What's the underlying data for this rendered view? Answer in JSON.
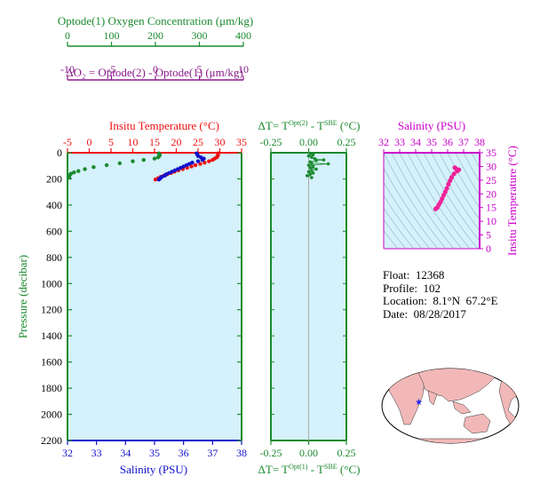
{
  "colors": {
    "oxygen": "#1a8a2e",
    "delta_o2": "#8a1a8a",
    "temperature": "#ee1111",
    "salinity": "#1111cc",
    "salinity_ts": "#cc00cc",
    "points_ts": "#ee2299",
    "panel_fill": "#d5f1fb",
    "pressure_axis": "#1a8a2e",
    "dt_axis": "#1a8a2e",
    "map_land": "#f2b8b8",
    "map_ocean": "#ffffff",
    "float_marker": "#2222ee"
  },
  "info": {
    "float": "Float:  12368",
    "profile": "Profile:  102",
    "location": "Location:  8.1°N  67.2°E",
    "date": "Date:  08/28/2017"
  },
  "chart_data": [
    {
      "type": "scatter",
      "panel": "profile",
      "axes": {
        "oxygen": {
          "label": "Optode(1) Oxygen Concentration (μm/kg)",
          "range": [
            0,
            400
          ],
          "ticks": [
            0,
            100,
            200,
            300,
            400
          ]
        },
        "delta_o2": {
          "label": "ΔO₂ = Optode(2) - Optode(1)   (μm/kg)",
          "range": [
            -10,
            10
          ],
          "ticks": [
            -10,
            -5,
            0,
            5,
            10
          ]
        },
        "temperature": {
          "label": "Insitu Temperature (°C)",
          "range": [
            -5,
            35
          ],
          "ticks": [
            -5,
            0,
            5,
            10,
            15,
            20,
            25,
            30,
            35
          ]
        },
        "salinity": {
          "label": "Salinity (PSU)",
          "range": [
            32,
            38
          ],
          "ticks": [
            32,
            33,
            34,
            35,
            36,
            37,
            38
          ]
        },
        "pressure": {
          "label": "Pressure (decibar)",
          "range": [
            0,
            2200
          ],
          "ticks": [
            0,
            200,
            400,
            600,
            800,
            1000,
            1200,
            1400,
            1600,
            1800,
            2000,
            2200
          ]
        }
      },
      "series": [
        {
          "key": "oxygen",
          "points": [
            [
              210,
              5
            ],
            [
              212,
              15
            ],
            [
              211,
              25
            ],
            [
              208,
              35
            ],
            [
              200,
              45
            ],
            [
              175,
              55
            ],
            [
              150,
              65
            ],
            [
              120,
              80
            ],
            [
              90,
              95
            ],
            [
              60,
              110
            ],
            [
              40,
              125
            ],
            [
              25,
              140
            ],
            [
              15,
              150
            ],
            [
              8,
              160
            ],
            [
              5,
              170
            ],
            [
              4,
              180
            ],
            [
              4,
              190
            ]
          ]
        },
        {
          "key": "temperature",
          "points": [
            [
              29.6,
              5
            ],
            [
              29.6,
              15
            ],
            [
              29.5,
              25
            ],
            [
              29.3,
              35
            ],
            [
              28.8,
              45
            ],
            [
              28.3,
              55
            ],
            [
              27.5,
              65
            ],
            [
              26.5,
              75
            ],
            [
              25.5,
              85
            ],
            [
              24.4,
              95
            ],
            [
              23.5,
              105
            ],
            [
              22.5,
              115
            ],
            [
              21.5,
              125
            ],
            [
              20.5,
              135
            ],
            [
              19.6,
              145
            ],
            [
              18.8,
              155
            ],
            [
              17.9,
              165
            ],
            [
              17.1,
              175
            ],
            [
              16.4,
              185
            ],
            [
              15.8,
              195
            ],
            [
              15.2,
              205
            ]
          ]
        },
        {
          "key": "salinity",
          "points": [
            [
              36.45,
              5
            ],
            [
              36.48,
              15
            ],
            [
              36.5,
              25
            ],
            [
              36.6,
              35
            ],
            [
              36.7,
              45
            ],
            [
              36.65,
              55
            ],
            [
              36.5,
              65
            ],
            [
              36.3,
              75
            ],
            [
              36.2,
              85
            ],
            [
              36.1,
              95
            ],
            [
              36.0,
              105
            ],
            [
              35.9,
              115
            ],
            [
              35.8,
              125
            ],
            [
              35.7,
              135
            ],
            [
              35.6,
              145
            ],
            [
              35.5,
              155
            ],
            [
              35.4,
              165
            ],
            [
              35.35,
              175
            ],
            [
              35.25,
              185
            ],
            [
              35.2,
              195
            ],
            [
              35.15,
              205
            ]
          ]
        }
      ]
    },
    {
      "type": "scatter",
      "panel": "delta_t",
      "axes": {
        "top": {
          "label": "ΔT= T^Opt(2) - T^SBE (°C)",
          "range": [
            -0.25,
            0.25
          ],
          "ticks": [
            "-0.25",
            "0.00",
            "0.25"
          ]
        },
        "bottom": {
          "label": "ΔT= T^Opt(1) - T^SBE (°C)",
          "range": [
            -0.25,
            0.25
          ],
          "ticks": [
            "-0.25",
            "0.00",
            "0.25"
          ]
        }
      },
      "points": [
        [
          0.01,
          5
        ],
        [
          0.03,
          15
        ],
        [
          0.0,
          25
        ],
        [
          0.02,
          35
        ],
        [
          0.04,
          45
        ],
        [
          0.1,
          55
        ],
        [
          0.05,
          60
        ],
        [
          0.01,
          70
        ],
        [
          0.02,
          80
        ],
        [
          0.13,
          85
        ],
        [
          0.0,
          95
        ],
        [
          0.03,
          105
        ],
        [
          0.01,
          115
        ],
        [
          0.05,
          125
        ],
        [
          0.02,
          135
        ],
        [
          0.0,
          145
        ],
        [
          0.03,
          155
        ],
        [
          0.01,
          165
        ],
        [
          -0.01,
          175
        ],
        [
          0.02,
          190
        ]
      ]
    },
    {
      "type": "scatter",
      "panel": "ts",
      "axes": {
        "x": {
          "label": "Salinity (PSU)",
          "range": [
            32,
            38
          ],
          "ticks": [
            32,
            33,
            34,
            35,
            36,
            37,
            38
          ]
        },
        "y": {
          "label": "Insitu Temperature (°C)",
          "range": [
            0,
            35
          ],
          "ticks": [
            0,
            5,
            10,
            15,
            20,
            25,
            30,
            35
          ]
        }
      },
      "points": [
        [
          36.45,
          29.6
        ],
        [
          36.5,
          29.3
        ],
        [
          36.7,
          28.8
        ],
        [
          36.6,
          28.3
        ],
        [
          36.4,
          27.3
        ],
        [
          36.25,
          26.0
        ],
        [
          36.15,
          24.8
        ],
        [
          36.05,
          23.5
        ],
        [
          35.95,
          22.0
        ],
        [
          35.85,
          20.7
        ],
        [
          35.75,
          19.5
        ],
        [
          35.65,
          18.2
        ],
        [
          35.55,
          17.0
        ],
        [
          35.45,
          16.0
        ],
        [
          35.35,
          15.0
        ],
        [
          35.25,
          14.5
        ]
      ]
    },
    {
      "type": "map",
      "panel": "location",
      "marker": {
        "lat": 8.1,
        "lon": 67.2
      }
    }
  ]
}
